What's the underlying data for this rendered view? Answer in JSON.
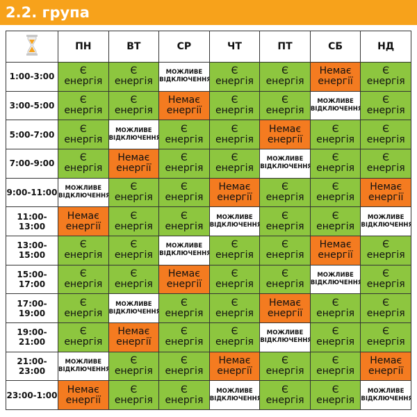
{
  "header": {
    "title": "2.2. група"
  },
  "table": {
    "days": [
      "ПН",
      "ВТ",
      "СР",
      "ЧТ",
      "ПТ",
      "СБ",
      "НД"
    ],
    "rows": [
      {
        "time": "1:00-3:00",
        "cells": [
          "Є енергія",
          "Є енергія",
          "МОЖЛИВЕ ВІДКЛЮЧЕННЯ",
          "Є енергія",
          "Є енергія",
          "Немає енергії",
          "Є енергія"
        ],
        "colors": [
          "#8dc63f",
          "#8dc63f",
          "#ffffff",
          "#8dc63f",
          "#8dc63f",
          "#f47b20",
          "#8dc63f"
        ]
      },
      {
        "time": "3:00-5:00",
        "cells": [
          "Є енергія",
          "Є енергія",
          "Немає енергії",
          "Є енергія",
          "Є енергія",
          "МОЖЛИВЕ ВІДКЛЮЧЕННЯ",
          "Є енергія"
        ],
        "colors": [
          "#8dc63f",
          "#8dc63f",
          "#f47b20",
          "#8dc63f",
          "#8dc63f",
          "#ffffff",
          "#8dc63f"
        ]
      },
      {
        "time": "5:00-7:00",
        "cells": [
          "Є енергія",
          "МОЖЛИВЕ ВІДКЛЮЧЕННЯ",
          "Є енергія",
          "Є енергія",
          "Немає енергії",
          "Є енергія",
          "Є енергія"
        ],
        "colors": [
          "#8dc63f",
          "#ffffff",
          "#8dc63f",
          "#8dc63f",
          "#f47b20",
          "#8dc63f",
          "#8dc63f"
        ]
      },
      {
        "time": "7:00-9:00",
        "cells": [
          "Є енергія",
          "Немає енергії",
          "Є енергія",
          "Є енергія",
          "МОЖЛИВЕ ВІДКЛЮЧЕННЯ",
          "Є енергія",
          "Є енергія"
        ],
        "colors": [
          "#8dc63f",
          "#f47b20",
          "#8dc63f",
          "#8dc63f",
          "#ffffff",
          "#8dc63f",
          "#8dc63f"
        ]
      },
      {
        "time": "9:00-11:00",
        "cells": [
          "МОЖЛИВЕ ВІДКЛЮЧЕННЯ",
          "Є енергія",
          "Є енергія",
          "Немає енергії",
          "Є енергія",
          "Є енергія",
          "Немає енергії"
        ],
        "colors": [
          "#ffffff",
          "#8dc63f",
          "#8dc63f",
          "#f47b20",
          "#8dc63f",
          "#8dc63f",
          "#f47b20"
        ]
      },
      {
        "time": "11:00-13:00",
        "cells": [
          "Немає енергії",
          "Є енергія",
          "Є енергія",
          "МОЖЛИВЕ ВІДКЛЮЧЕННЯ",
          "Є енергія",
          "Є енергія",
          "МОЖЛИВЕ ВІДКЛЮЧЕННЯ"
        ],
        "colors": [
          "#f47b20",
          "#8dc63f",
          "#8dc63f",
          "#ffffff",
          "#8dc63f",
          "#8dc63f",
          "#ffffff"
        ]
      },
      {
        "time": "13:00-15:00",
        "cells": [
          "Є енергія",
          "Є енергія",
          "МОЖЛИВЕ ВІДКЛЮЧЕННЯ",
          "Є енергія",
          "Є енергія",
          "Немає енергії",
          "Є енергія"
        ],
        "colors": [
          "#8dc63f",
          "#8dc63f",
          "#ffffff",
          "#8dc63f",
          "#8dc63f",
          "#f47b20",
          "#8dc63f"
        ]
      },
      {
        "time": "15:00-17:00",
        "cells": [
          "Є енергія",
          "Є енергія",
          "Немає енергії",
          "Є енергія",
          "Є енергія",
          "МОЖЛИВЕ ВІДКЛЮЧЕННЯ",
          "Є енергія"
        ],
        "colors": [
          "#8dc63f",
          "#8dc63f",
          "#f47b20",
          "#8dc63f",
          "#8dc63f",
          "#ffffff",
          "#8dc63f"
        ]
      },
      {
        "time": "17:00-19:00",
        "cells": [
          "Є енергія",
          "МОЖЛИВЕ ВІДКЛЮЧЕННЯ",
          "Є енергія",
          "Є енергія",
          "Немає енергії",
          "Є енергія",
          "Є енергія"
        ],
        "colors": [
          "#8dc63f",
          "#ffffff",
          "#8dc63f",
          "#8dc63f",
          "#f47b20",
          "#8dc63f",
          "#8dc63f"
        ]
      },
      {
        "time": "19:00-21:00",
        "cells": [
          "Є енергія",
          "Немає енергії",
          "Є енергія",
          "Є енергія",
          "МОЖЛИВЕ ВІДКЛЮЧЕННЯ",
          "Є енергія",
          "Є енергія"
        ],
        "colors": [
          "#8dc63f",
          "#f47b20",
          "#8dc63f",
          "#8dc63f",
          "#ffffff",
          "#8dc63f",
          "#8dc63f"
        ]
      },
      {
        "time": "21:00-23:00",
        "cells": [
          "МОЖЛИВЕ ВІДКЛЮЧЕННЯ",
          "Є енергія",
          "Є енергія",
          "Немає енергії",
          "Є енергія",
          "Є енергія",
          "Немає енергії"
        ],
        "colors": [
          "#ffffff",
          "#8dc63f",
          "#8dc63f",
          "#f47b20",
          "#8dc63f",
          "#8dc63f",
          "#f47b20"
        ]
      },
      {
        "time": "23:00-1:00",
        "cells": [
          "Немає енергії",
          "Є енергія",
          "Є енергія",
          "МОЖЛИВЕ ВІДКЛЮЧЕННЯ",
          "Є енергія",
          "Є енергія",
          "МОЖЛИВЕ ВІДКЛЮЧЕННЯ"
        ],
        "colors": [
          "#f47b20",
          "#8dc63f",
          "#8dc63f",
          "#ffffff",
          "#8dc63f",
          "#8dc63f",
          "#ffffff"
        ]
      }
    ]
  }
}
